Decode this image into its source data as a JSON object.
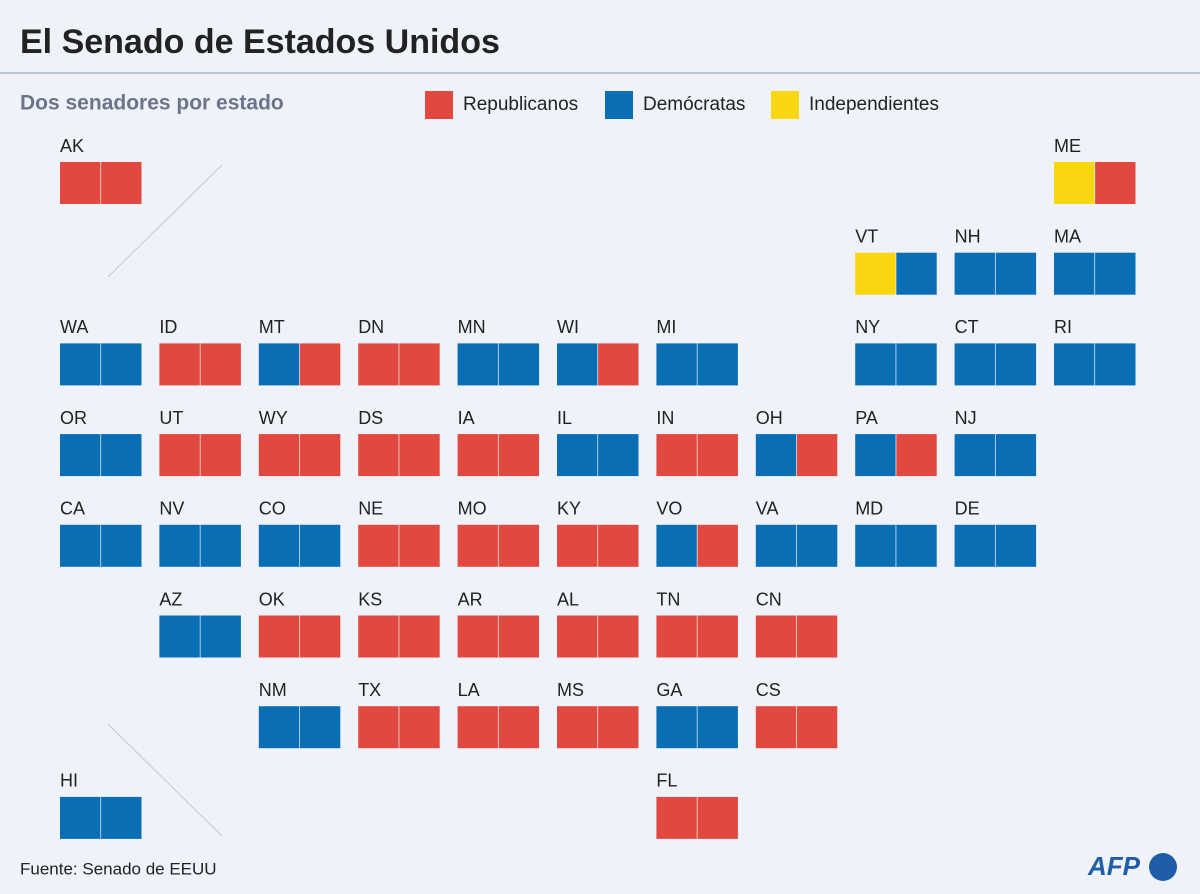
{
  "header": {
    "title": "El Senado de Estados Unidos",
    "subtitle": "Dos senadores por estado"
  },
  "legend": [
    {
      "name": "Republicanos",
      "color": "#e1483f"
    },
    {
      "name": "Demócratas",
      "color": "#0a6eb4"
    },
    {
      "name": "Independientes",
      "color": "#f9d710"
    }
  ],
  "states": [
    {
      "label": "AK",
      "seats": [
        "#e1483f",
        "#e1483f"
      ]
    },
    {
      "label": "ME",
      "seats": [
        "#f9d710",
        "#e1483f"
      ]
    },
    {
      "label": "VT",
      "seats": [
        "#f9d710",
        "#0a6eb4"
      ]
    },
    {
      "label": "NH",
      "seats": [
        "#0a6eb4",
        "#0a6eb4"
      ]
    },
    {
      "label": "MA",
      "seats": [
        "#0a6eb4",
        "#0a6eb4"
      ]
    },
    {
      "label": "WA",
      "seats": [
        "#0a6eb4",
        "#0a6eb4"
      ]
    },
    {
      "label": "ID",
      "seats": [
        "#e1483f",
        "#e1483f"
      ]
    },
    {
      "label": "MT",
      "seats": [
        "#0a6eb4",
        "#e1483f"
      ]
    },
    {
      "label": "DN",
      "seats": [
        "#e1483f",
        "#e1483f"
      ]
    },
    {
      "label": "MN",
      "seats": [
        "#0a6eb4",
        "#0a6eb4"
      ]
    },
    {
      "label": "WI",
      "seats": [
        "#0a6eb4",
        "#e1483f"
      ]
    },
    {
      "label": "MI",
      "seats": [
        "#0a6eb4",
        "#0a6eb4"
      ]
    },
    {
      "label": "NY",
      "seats": [
        "#0a6eb4",
        "#0a6eb4"
      ]
    },
    {
      "label": "CT",
      "seats": [
        "#0a6eb4",
        "#0a6eb4"
      ]
    },
    {
      "label": "RI",
      "seats": [
        "#0a6eb4",
        "#0a6eb4"
      ]
    },
    {
      "label": "OR",
      "seats": [
        "#0a6eb4",
        "#0a6eb4"
      ]
    },
    {
      "label": "UT",
      "seats": [
        "#e1483f",
        "#e1483f"
      ]
    },
    {
      "label": "WY",
      "seats": [
        "#e1483f",
        "#e1483f"
      ]
    },
    {
      "label": "DS",
      "seats": [
        "#e1483f",
        "#e1483f"
      ]
    },
    {
      "label": "IA",
      "seats": [
        "#e1483f",
        "#e1483f"
      ]
    },
    {
      "label": "IL",
      "seats": [
        "#0a6eb4",
        "#0a6eb4"
      ]
    },
    {
      "label": "IN",
      "seats": [
        "#e1483f",
        "#e1483f"
      ]
    },
    {
      "label": "OH",
      "seats": [
        "#0a6eb4",
        "#e1483f"
      ]
    },
    {
      "label": "PA",
      "seats": [
        "#0a6eb4",
        "#e1483f"
      ]
    },
    {
      "label": "NJ",
      "seats": [
        "#0a6eb4",
        "#0a6eb4"
      ]
    },
    {
      "label": "CA",
      "seats": [
        "#0a6eb4",
        "#0a6eb4"
      ]
    },
    {
      "label": "NV",
      "seats": [
        "#0a6eb4",
        "#0a6eb4"
      ]
    },
    {
      "label": "CO",
      "seats": [
        "#0a6eb4",
        "#0a6eb4"
      ]
    },
    {
      "label": "NE",
      "seats": [
        "#e1483f",
        "#e1483f"
      ]
    },
    {
      "label": "MO",
      "seats": [
        "#e1483f",
        "#e1483f"
      ]
    },
    {
      "label": "KY",
      "seats": [
        "#e1483f",
        "#e1483f"
      ]
    },
    {
      "label": "VO",
      "seats": [
        "#0a6eb4",
        "#e1483f"
      ]
    },
    {
      "label": "VA",
      "seats": [
        "#0a6eb4",
        "#0a6eb4"
      ]
    },
    {
      "label": "MD",
      "seats": [
        "#0a6eb4",
        "#0a6eb4"
      ]
    },
    {
      "label": "DE",
      "seats": [
        "#0a6eb4",
        "#0a6eb4"
      ]
    },
    {
      "label": "AZ",
      "seats": [
        "#0a6eb4",
        "#0a6eb4"
      ]
    },
    {
      "label": "OK",
      "seats": [
        "#e1483f",
        "#e1483f"
      ]
    },
    {
      "label": "KS",
      "seats": [
        "#e1483f",
        "#e1483f"
      ]
    },
    {
      "label": "AR",
      "seats": [
        "#e1483f",
        "#e1483f"
      ]
    },
    {
      "label": "AL",
      "seats": [
        "#e1483f",
        "#e1483f"
      ]
    },
    {
      "label": "TN",
      "seats": [
        "#e1483f",
        "#e1483f"
      ]
    },
    {
      "label": "CN",
      "seats": [
        "#e1483f",
        "#e1483f"
      ]
    },
    {
      "label": "NM",
      "seats": [
        "#0a6eb4",
        "#0a6eb4"
      ]
    },
    {
      "label": "TX",
      "seats": [
        "#e1483f",
        "#e1483f"
      ]
    },
    {
      "label": "LA",
      "seats": [
        "#e1483f",
        "#e1483f"
      ]
    },
    {
      "label": "MS",
      "seats": [
        "#e1483f",
        "#e1483f"
      ]
    },
    {
      "label": "GA",
      "seats": [
        "#0a6eb4",
        "#0a6eb4"
      ]
    },
    {
      "label": "CS",
      "seats": [
        "#e1483f",
        "#e1483f"
      ]
    },
    {
      "label": "HI",
      "seats": [
        "#0a6eb4",
        "#0a6eb4"
      ]
    },
    {
      "label": "FL",
      "seats": [
        "#e1483f",
        "#e1483f"
      ]
    }
  ],
  "footer": {
    "source": "Fuente: Senado de EEUU",
    "logo": "AFP"
  }
}
